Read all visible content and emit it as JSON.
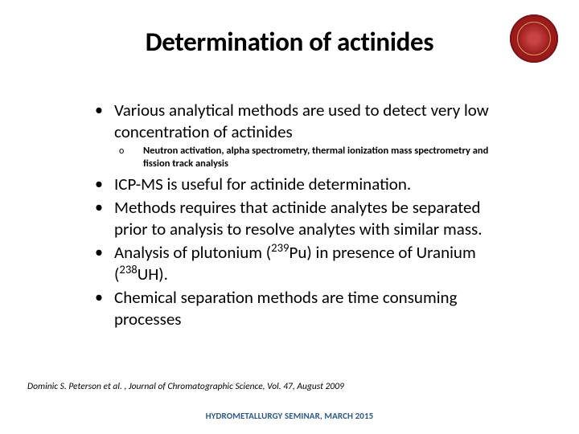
{
  "title": "Determination of actinides",
  "bullets": [
    {
      "text": "Various analytical methods are used to detect very low concentration of actinides",
      "sub": {
        "marker": "o",
        "text": "Neutron activation, alpha spectrometry, thermal ionization mass spectrometry and fission track analysis"
      }
    },
    {
      "text": "ICP-MS is useful for actinide determination."
    },
    {
      "text": "Methods requires that actinide analytes be separated prior to analysis to resolve analytes with similar mass."
    },
    {
      "text_html": "Analysis of plutonium (<sup>239</sup>Pu) in presence of Uranium (<sup>238</sup>UH)."
    },
    {
      "text": "Chemical separation methods are time consuming processes"
    }
  ],
  "citation": "Dominic S. Peterson et al. , Journal of Chromatographic Science, Vol. 47, August 2009",
  "footer": "HYDROMETALLURGY SEMINAR, MARCH 2015",
  "colors": {
    "logo_bg": "#9b1b1b",
    "footer_text": "#2e5a8a"
  }
}
